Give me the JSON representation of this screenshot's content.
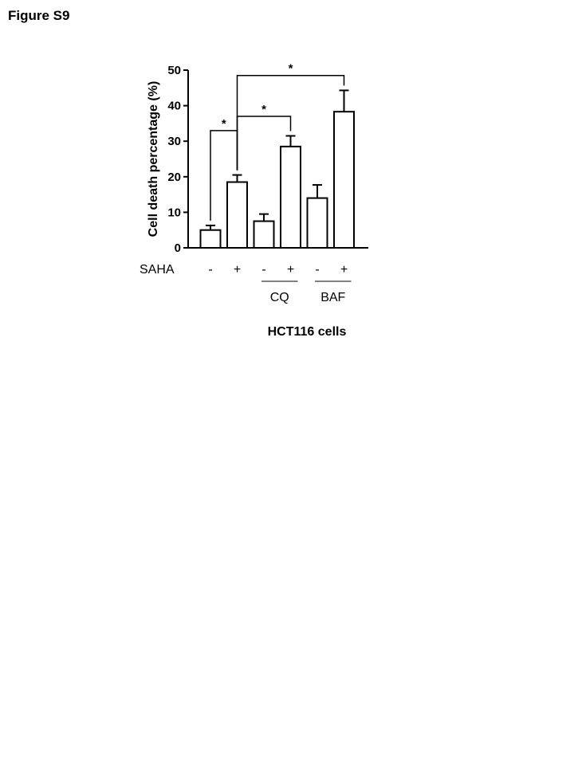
{
  "figure_title": "Figure S9",
  "chart_data": {
    "type": "bar",
    "title": "",
    "ylabel": "Cell death percentage (%)",
    "xlabel": "",
    "ylim": [
      0,
      50
    ],
    "yticks": [
      0,
      10,
      20,
      30,
      40,
      50
    ],
    "categories": [
      "-",
      "+",
      "-",
      "+",
      "-",
      "+"
    ],
    "values": [
      5,
      18.5,
      7.5,
      28.5,
      14,
      38.3
    ],
    "errors": [
      1.3,
      2,
      2,
      3,
      3.7,
      6
    ],
    "row_label": "SAHA",
    "groups": [
      {
        "label": "CQ",
        "bars": [
          2,
          3
        ]
      },
      {
        "label": "BAF",
        "bars": [
          4,
          5
        ]
      }
    ],
    "significance": [
      {
        "from": 0,
        "to": 1,
        "label": "*"
      },
      {
        "from": 1,
        "to": 3,
        "label": "*"
      },
      {
        "from": 1,
        "to": 5,
        "label": "*"
      }
    ],
    "caption": "HCT116 cells",
    "grid": false,
    "legend": "none",
    "bar_fill": "#ffffff",
    "bar_stroke": "#000000"
  }
}
